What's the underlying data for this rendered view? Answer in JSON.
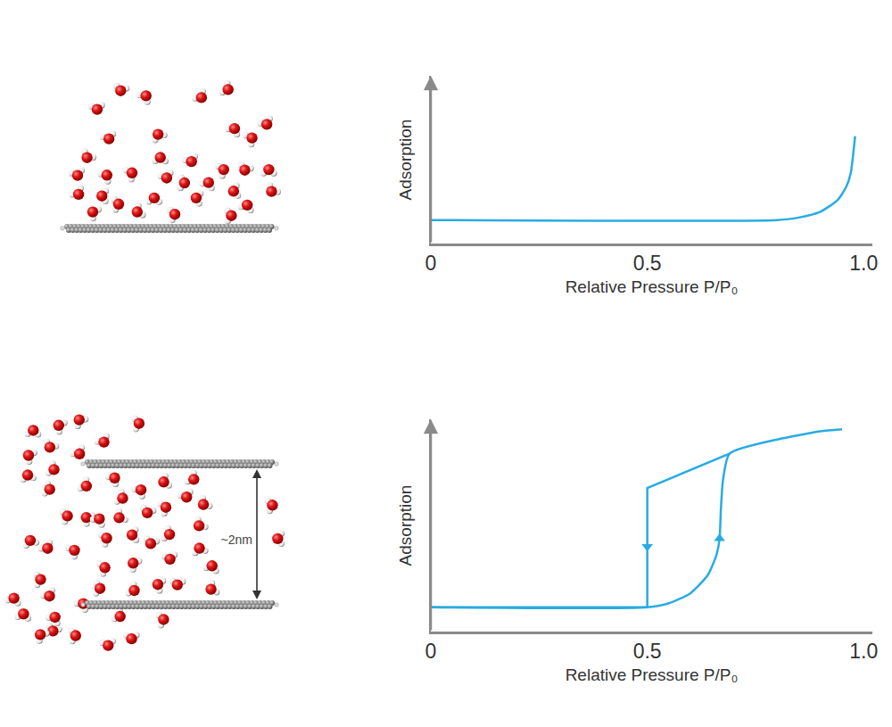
{
  "chart_data": [
    {
      "type": "line",
      "x_label": "Relative Pressure P/P₀",
      "y_label": "Adsorption",
      "xlim": [
        0,
        1.02
      ],
      "ylim": [
        0,
        1
      ],
      "xticks": [
        0,
        0.5,
        {
          "value": 1,
          "label": "1.0"
        }
      ],
      "yticks": [],
      "tick_labels": "x",
      "grid": false,
      "series": [
        {
          "color": "#29abe2",
          "line_style": "smooth",
          "x": [
            0,
            0.8,
            0.85,
            0.9,
            0.94,
            0.96,
            0.97,
            0.98
          ],
          "values": [
            0.14,
            0.14,
            0.155,
            0.19,
            0.26,
            0.34,
            0.42,
            0.64
          ]
        }
      ]
    },
    {
      "type": "line",
      "x_label": "Relative Pressure P/P₀",
      "y_label": "Adsorption",
      "xlim": [
        0,
        1.02
      ],
      "ylim": [
        0,
        1.05
      ],
      "xticks": [
        0,
        0.5,
        {
          "value": 1,
          "label": "1.0"
        }
      ],
      "yticks": [],
      "tick_labels": "x",
      "grid": false,
      "series": [
        {
          "color": "#29abe2",
          "line_style": "smooth",
          "marker": "triangle-up",
          "x": [
            0,
            0.5,
            0.55,
            0.6,
            0.64,
            0.66,
            0.667,
            0.67,
            0.675,
            0.69,
            0.8,
            0.9,
            0.95
          ],
          "values": [
            0.12,
            0.12,
            0.14,
            0.19,
            0.28,
            0.38,
            0.46,
            0.6,
            0.75,
            0.88,
            0.95,
            0.99,
            1.0
          ]
        },
        {
          "color": "#29abe2",
          "line_style": "solid",
          "marker": "triangle-down",
          "x": [
            0.69,
            0.5,
            0.5,
            0.5,
            0
          ],
          "values": [
            0.88,
            0.71,
            0.42,
            0.12,
            0.12
          ]
        }
      ]
    }
  ],
  "diagram": {
    "spacing_label": "~2nm"
  }
}
